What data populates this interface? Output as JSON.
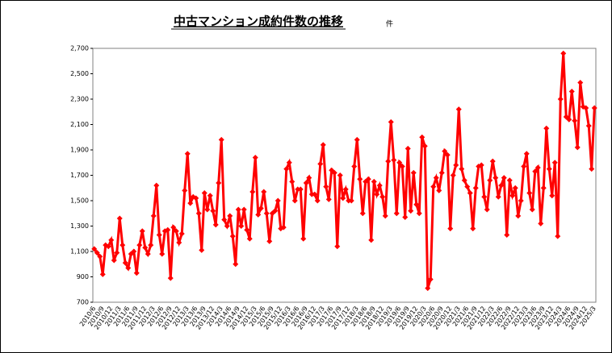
{
  "chart_data": {
    "type": "line",
    "title": "中古マンション成約件数の推移",
    "unit": "件",
    "color": "#ff0000",
    "grid": false,
    "ylim": [
      700,
      2700
    ],
    "yticks": [
      700,
      900,
      {
        "value": 1100,
        "label": "1,100"
      },
      {
        "value": 1300,
        "label": "1,300"
      },
      {
        "value": 1500,
        "label": "1,500"
      },
      {
        "value": 1700,
        "label": "1,700"
      },
      {
        "value": 1900,
        "label": "1,900"
      },
      {
        "value": 2100,
        "label": "2,100"
      },
      {
        "value": 2300,
        "label": "2,300"
      },
      {
        "value": 2500,
        "label": "2,500"
      },
      {
        "value": 2700,
        "label": "2,700"
      }
    ],
    "categories": [
      "2010/6",
      null,
      null,
      "2010/9",
      null,
      null,
      "2010/12",
      null,
      null,
      "2011/3",
      null,
      null,
      "2011/6",
      null,
      null,
      "2011/9",
      null,
      null,
      "2011/12",
      null,
      null,
      "2012/3",
      null,
      null,
      "2012/6",
      null,
      null,
      "2012/9",
      null,
      null,
      "2012/12",
      null,
      null,
      "2013/3",
      null,
      null,
      "2013/6",
      null,
      null,
      "2013/9",
      null,
      null,
      "2013/12",
      null,
      null,
      "2014/3",
      null,
      null,
      "2014/6",
      null,
      null,
      "2014/9",
      null,
      null,
      "2014/12",
      null,
      null,
      "2015/3",
      null,
      null,
      "2015/6",
      null,
      null,
      "2015/9",
      null,
      null,
      "2015/12",
      null,
      null,
      "2016/3",
      null,
      null,
      "2016/6",
      null,
      null,
      "2016/9",
      null,
      null,
      "2016/12",
      null,
      null,
      "2017/3",
      null,
      null,
      "2017/6",
      null,
      null,
      "2017/9",
      null,
      null,
      "2017/12",
      null,
      null,
      "2018/3",
      null,
      null,
      "2018/6",
      null,
      null,
      "2018/9",
      null,
      null,
      "2018/12",
      null,
      null,
      "2019/3",
      null,
      null,
      "2019/6",
      null,
      null,
      "2019/9",
      null,
      null,
      "2019/12",
      null,
      null,
      "2020/3",
      null,
      null,
      "2020/6",
      null,
      null,
      "2020/9",
      null,
      null,
      "2020/12",
      null,
      null,
      "2021/3",
      null,
      null,
      "2021/6",
      null,
      null,
      "2021/9",
      null,
      null,
      "2021/12",
      null,
      null,
      "2022/3",
      null,
      null,
      "2022/6",
      null,
      null,
      "2022/9",
      null,
      null,
      "2022/12",
      null,
      null,
      "2023/3",
      null,
      null,
      "2023/6",
      null,
      null,
      "2023/9",
      null,
      null,
      "2023/12",
      null,
      null,
      "2024/3",
      null,
      null,
      "2024/6",
      null,
      null,
      "2024/9",
      null,
      null,
      "2024/12",
      null,
      null,
      "2025/3"
    ],
    "values": [
      1120,
      1090,
      1060,
      920,
      1150,
      1140,
      1190,
      1030,
      1090,
      1360,
      1150,
      1010,
      970,
      1080,
      1100,
      930,
      1150,
      1260,
      1130,
      1080,
      1150,
      1380,
      1620,
      1230,
      1080,
      1260,
      1270,
      890,
      1290,
      1260,
      1170,
      1240,
      1580,
      1870,
      1480,
      1530,
      1520,
      1400,
      1110,
      1560,
      1430,
      1540,
      1420,
      1310,
      1640,
      1980,
      1350,
      1300,
      1380,
      1220,
      1000,
      1430,
      1300,
      1430,
      1270,
      1200,
      1570,
      1840,
      1390,
      1440,
      1570,
      1400,
      1180,
      1400,
      1420,
      1500,
      1280,
      1290,
      1750,
      1800,
      1650,
      1500,
      1590,
      1590,
      1200,
      1640,
      1680,
      1550,
      1550,
      1500,
      1790,
      1940,
      1610,
      1510,
      1740,
      1720,
      1140,
      1700,
      1520,
      1590,
      1500,
      1500,
      1770,
      1980,
      1670,
      1400,
      1650,
      1670,
      1190,
      1650,
      1550,
      1620,
      1530,
      1380,
      1810,
      2120,
      1820,
      1400,
      1800,
      1770,
      1370,
      1910,
      1420,
      1720,
      1470,
      1400,
      2000,
      1930,
      810,
      880,
      1610,
      1680,
      1580,
      1720,
      1890,
      1860,
      1280,
      1700,
      1780,
      2220,
      1750,
      1660,
      1610,
      1560,
      1280,
      1600,
      1770,
      1780,
      1530,
      1430,
      1660,
      1810,
      1680,
      1530,
      1620,
      1680,
      1230,
      1660,
      1540,
      1600,
      1380,
      1500,
      1770,
      1870,
      1560,
      1430,
      1730,
      1760,
      1320,
      1600,
      2070,
      1750,
      1540,
      1800,
      1220,
      2300,
      2660,
      2160,
      2140,
      2360,
      2130,
      1920,
      2430,
      2240,
      2230,
      2090,
      1750,
      2230
    ]
  }
}
